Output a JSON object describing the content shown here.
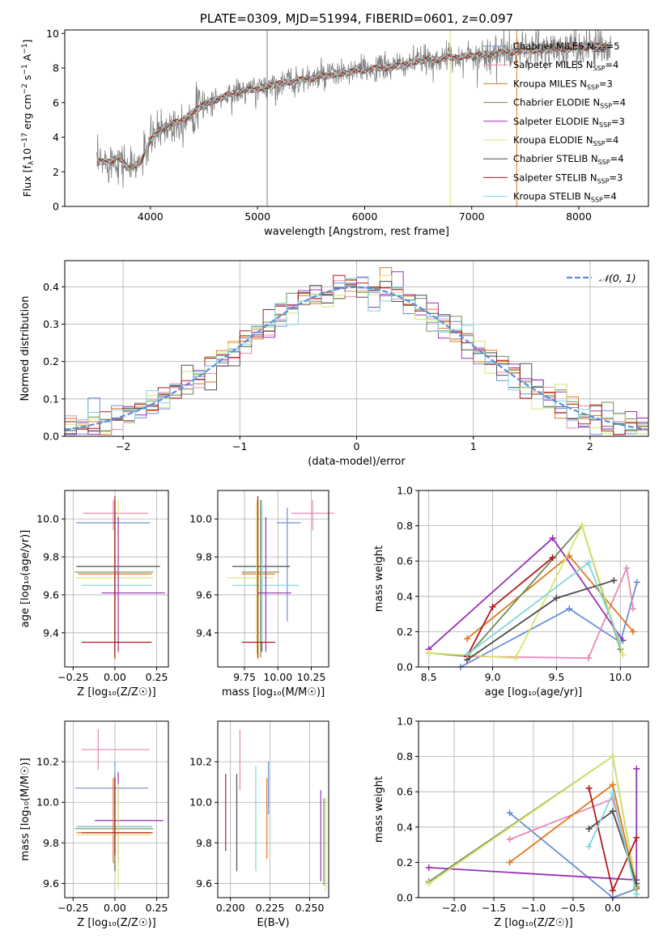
{
  "colors": {
    "chabrier_miles": "#6b8fd6",
    "salpeter_miles": "#e889b8",
    "kroupa_miles": "#e0781c",
    "chabrier_elodie": "#6e8f5e",
    "salpeter_elodie": "#9933b3",
    "kroupa_elodie": "#d9e56a",
    "chabrier_stelib": "#4d4d4d",
    "salpeter_stelib": "#b31a1a",
    "kroupa_stelib": "#7fd6d9",
    "data": "#7f7f7f",
    "normal": "#5b8fd6",
    "grid": "#b0b0b0"
  },
  "chart_data": [
    {
      "id": "spectrum",
      "type": "line",
      "title": "PLATE=0309, MJD=51994, FIBERID=0601, z=0.097",
      "xlabel": "wavelength [Angstrom, rest frame]",
      "ylabel_parts": [
        "Flux [f",
        "λ",
        "10",
        "−17",
        " erg cm",
        "−2",
        " s",
        "−1",
        " A",
        "−1",
        "]"
      ],
      "xlim": [
        3200,
        8650
      ],
      "ylim": [
        0,
        10.2
      ],
      "xticks": [
        4000,
        5000,
        6000,
        7000,
        8000
      ],
      "yticks": [
        0,
        2,
        4,
        6,
        8,
        10
      ],
      "grid": false,
      "legend_position": "top-right",
      "continuum": {
        "x": [
          3500,
          3600,
          3700,
          3800,
          3900,
          4000,
          4100,
          4300,
          4500,
          4800,
          5000,
          5200,
          5500,
          5800,
          6000,
          6300,
          6500,
          6800,
          7000,
          7300,
          7500,
          7800,
          8000,
          8300
        ],
        "y": [
          2.5,
          2.6,
          2.8,
          2.2,
          2.5,
          3.8,
          4.5,
          5.0,
          5.9,
          6.6,
          6.8,
          7.1,
          7.4,
          7.7,
          7.9,
          8.1,
          8.4,
          8.6,
          8.7,
          8.9,
          9.0,
          9.1,
          9.2,
          9.3
        ]
      },
      "series": [
        {
          "name": "Chabrier MILES",
          "nssp": "=5",
          "color_key": "chabrier_miles"
        },
        {
          "name": "Salpeter MILES",
          "nssp": "=4",
          "color_key": "salpeter_miles"
        },
        {
          "name": "Kroupa MILES",
          "nssp": "=3",
          "color_key": "kroupa_miles"
        },
        {
          "name": "Chabrier ELODIE",
          "nssp": "=4",
          "color_key": "chabrier_elodie"
        },
        {
          "name": "Salpeter ELODIE",
          "nssp": "=3",
          "color_key": "salpeter_elodie"
        },
        {
          "name": "Kroupa ELODIE",
          "nssp": "=4",
          "color_key": "kroupa_elodie"
        },
        {
          "name": "Chabrier STELIB",
          "nssp": "=4",
          "color_key": "chabrier_stelib"
        },
        {
          "name": "Salpeter STELIB",
          "nssp": "=3",
          "color_key": "salpeter_stelib"
        },
        {
          "name": "Kroupa STELIB",
          "nssp": "=4",
          "color_key": "kroupa_stelib"
        }
      ],
      "vertical_spikes": [
        {
          "x": 5090,
          "color_key": "data"
        },
        {
          "x": 6800,
          "color_key": "kroupa_elodie"
        },
        {
          "x": 7420,
          "color_key": "kroupa_miles"
        }
      ]
    },
    {
      "id": "residuals",
      "type": "histogram",
      "xlabel": "(data-model)/error",
      "ylabel": "Normed distribution",
      "xlim": [
        -2.5,
        2.5
      ],
      "ylim": [
        0,
        0.47
      ],
      "xticks": [
        -2,
        -1,
        0,
        1,
        2
      ],
      "yticks": [
        0.0,
        0.1,
        0.2,
        0.3,
        0.4
      ],
      "grid": true,
      "legend_position": "top-right",
      "bin_width": 0.1,
      "normal_curve": {
        "name": "𝒩(0, 1)",
        "mean": 0,
        "sigma": 1
      }
    },
    {
      "id": "age_vs_z",
      "type": "errorbar",
      "xlabel": "Z [log₁₀(Z/Z☉)]",
      "ylabel": "age  [log₁₀(age/yr)]",
      "xlim": [
        -0.3,
        0.32
      ],
      "ylim": [
        9.22,
        10.15
      ],
      "xticks": [
        -0.25,
        0.0,
        0.25
      ],
      "yticks": [
        9.4,
        9.6,
        9.8,
        10.0
      ],
      "grid": true,
      "points": [
        {
          "series": "salpeter_miles",
          "x": -0.01,
          "xerr": [
            0.18,
            0.21
          ],
          "y": 10.03,
          "yerr": [
            0.09,
            0.07
          ]
        },
        {
          "series": "chabrier_miles",
          "x": 0.0,
          "xerr": [
            0.23,
            0.21
          ],
          "y": 9.98,
          "yerr": [
            0.6,
            0.08
          ]
        },
        {
          "series": "chabrier_stelib",
          "x": 0.0,
          "xerr": [
            0.23,
            0.27
          ],
          "y": 9.75,
          "yerr": [
            0.45,
            0.3
          ]
        },
        {
          "series": "chabrier_elodie",
          "x": 0.0,
          "xerr": [
            0.24,
            0.23
          ],
          "y": 9.72,
          "yerr": [
            0.45,
            0.38
          ]
        },
        {
          "series": "kroupa_miles",
          "x": 0.0,
          "xerr": [
            0.22,
            0.22
          ],
          "y": 9.71,
          "yerr": [
            0.45,
            0.39
          ]
        },
        {
          "series": "kroupa_elodie",
          "x": 0.02,
          "xerr": [
            0.25,
            0.21
          ],
          "y": 9.69,
          "yerr": [
            0.4,
            0.41
          ]
        },
        {
          "series": "kroupa_stelib",
          "x": 0.0,
          "xerr": [
            0.2,
            0.22
          ],
          "y": 9.65,
          "yerr": [
            0.3,
            0.45
          ]
        },
        {
          "series": "salpeter_elodie",
          "x": 0.02,
          "xerr": [
            0.1,
            0.28
          ],
          "y": 9.61,
          "yerr": [
            0.31,
            0.4
          ]
        },
        {
          "series": "salpeter_stelib",
          "x": 0.0,
          "xerr": [
            0.2,
            0.22
          ],
          "y": 9.35,
          "yerr": [
            0.08,
            0.77
          ]
        }
      ]
    },
    {
      "id": "age_vs_mass",
      "type": "errorbar",
      "xlabel": "mass [log₁₀(M/M☉)]",
      "ylabel": "",
      "xlim": [
        9.55,
        10.38
      ],
      "ylim": [
        9.22,
        10.15
      ],
      "xticks": [
        9.75,
        10.0,
        10.25
      ],
      "yticks": [
        9.4,
        9.6,
        9.8,
        10.0
      ],
      "grid": true,
      "points": [
        {
          "series": "salpeter_miles",
          "x": 10.26,
          "xerr": [
            0.16,
            0.16
          ],
          "y": 10.03,
          "yerr": [
            0.09,
            0.07
          ]
        },
        {
          "series": "chabrier_miles",
          "x": 10.07,
          "xerr": [
            0.08,
            0.1
          ],
          "y": 9.98,
          "yerr": [
            0.52,
            0.08
          ]
        },
        {
          "series": "chabrier_stelib",
          "x": 9.88,
          "xerr": [
            0.22,
            0.21
          ],
          "y": 9.75,
          "yerr": [
            0.45,
            0.3
          ]
        },
        {
          "series": "chabrier_elodie",
          "x": 9.87,
          "xerr": [
            0.14,
            0.14
          ],
          "y": 9.72,
          "yerr": [
            0.45,
            0.38
          ]
        },
        {
          "series": "kroupa_miles",
          "x": 9.85,
          "xerr": [
            0.12,
            0.13
          ],
          "y": 9.71,
          "yerr": [
            0.45,
            0.39
          ]
        },
        {
          "series": "kroupa_elodie",
          "x": 9.84,
          "xerr": [
            0.22,
            0.13
          ],
          "y": 9.69,
          "yerr": [
            0.4,
            0.41
          ]
        },
        {
          "series": "kroupa_stelib",
          "x": 9.88,
          "xerr": [
            0.22,
            0.28
          ],
          "y": 9.65,
          "yerr": [
            0.3,
            0.45
          ]
        },
        {
          "series": "salpeter_elodie",
          "x": 9.91,
          "xerr": [
            0.06,
            0.19
          ],
          "y": 9.61,
          "yerr": [
            0.31,
            0.4
          ]
        },
        {
          "series": "salpeter_stelib",
          "x": 9.85,
          "xerr": [
            0.12,
            0.13
          ],
          "y": 9.35,
          "yerr": [
            0.08,
            0.77
          ]
        }
      ]
    },
    {
      "id": "weight_vs_age",
      "type": "line",
      "xlabel": "age  [log₁₀(age/yr)]",
      "ylabel": "mass weight",
      "xlim": [
        8.42,
        10.22
      ],
      "ylim": [
        0,
        1.0
      ],
      "xticks": [
        8.5,
        9.0,
        9.5,
        10.0
      ],
      "yticks": [
        0.0,
        0.2,
        0.4,
        0.6,
        0.8,
        1.0
      ],
      "grid": true,
      "series": [
        {
          "series": "chabrier_miles",
          "x": [
            8.75,
            9.6,
            10.0,
            10.13
          ],
          "y": [
            0.0,
            0.33,
            0.14,
            0.48
          ]
        },
        {
          "series": "salpeter_miles",
          "x": [
            8.8,
            9.75,
            10.05,
            10.1
          ],
          "y": [
            0.06,
            0.05,
            0.56,
            0.33
          ]
        },
        {
          "series": "kroupa_miles",
          "x": [
            8.8,
            9.6,
            10.1
          ],
          "y": [
            0.16,
            0.63,
            0.2
          ]
        },
        {
          "series": "chabrier_elodie",
          "x": [
            8.5,
            8.8,
            9.7,
            10.0
          ],
          "y": [
            0.08,
            0.06,
            0.8,
            0.1
          ]
        },
        {
          "series": "salpeter_elodie",
          "x": [
            8.5,
            9.47,
            10.02
          ],
          "y": [
            0.1,
            0.73,
            0.15
          ]
        },
        {
          "series": "kroupa_elodie",
          "x": [
            8.5,
            9.18,
            9.7,
            10.02
          ],
          "y": [
            0.08,
            0.05,
            0.8,
            0.07
          ]
        },
        {
          "series": "chabrier_stelib",
          "x": [
            8.8,
            9.5,
            9.95
          ],
          "y": [
            0.04,
            0.39,
            0.49
          ]
        },
        {
          "series": "salpeter_stelib",
          "x": [
            8.8,
            9.0,
            9.47
          ],
          "y": [
            0.06,
            0.34,
            0.62
          ]
        },
        {
          "series": "kroupa_stelib",
          "x": [
            8.8,
            9.75,
            10.0
          ],
          "y": [
            0.07,
            0.59,
            0.14
          ]
        }
      ]
    },
    {
      "id": "mass_vs_z",
      "type": "errorbar",
      "xlabel": "Z [log₁₀(Z/Z☉)]",
      "ylabel": "mass [log₁₀(M/M☉)]",
      "xlim": [
        -0.3,
        0.32
      ],
      "ylim": [
        9.53,
        10.4
      ],
      "xticks": [
        -0.25,
        0.0,
        0.25
      ],
      "yticks": [
        9.6,
        9.8,
        10.0,
        10.2
      ],
      "grid": true,
      "points": [
        {
          "series": "salpeter_miles",
          "x": -0.1,
          "xerr": [
            0.1,
            0.31
          ],
          "y": 10.26,
          "yerr": [
            0.1,
            0.1
          ]
        },
        {
          "series": "chabrier_miles",
          "x": 0.0,
          "xerr": [
            0.24,
            0.2
          ],
          "y": 10.07,
          "yerr": [
            0.23,
            0.13
          ]
        },
        {
          "series": "salpeter_elodie",
          "x": 0.02,
          "xerr": [
            0.14,
            0.27
          ],
          "y": 9.91,
          "yerr": [
            0.21,
            0.24
          ]
        },
        {
          "series": "chabrier_stelib",
          "x": 0.0,
          "xerr": [
            0.23,
            0.22
          ],
          "y": 9.88,
          "yerr": [
            0.22,
            0.25
          ]
        },
        {
          "series": "kroupa_stelib",
          "x": 0.0,
          "xerr": [
            0.23,
            0.22
          ],
          "y": 9.88,
          "yerr": [
            0.15,
            0.25
          ]
        },
        {
          "series": "chabrier_elodie",
          "x": 0.0,
          "xerr": [
            0.24,
            0.23
          ],
          "y": 9.87,
          "yerr": [
            0.16,
            0.27
          ]
        },
        {
          "series": "kroupa_miles",
          "x": -0.01,
          "xerr": [
            0.22,
            0.24
          ],
          "y": 9.85,
          "yerr": [
            0.15,
            0.27
          ]
        },
        {
          "series": "kroupa_elodie",
          "x": 0.02,
          "xerr": [
            0.25,
            0.2
          ],
          "y": 9.84,
          "yerr": [
            0.27,
            0.25
          ]
        },
        {
          "series": "salpeter_stelib",
          "x": 0.0,
          "xerr": [
            0.2,
            0.22
          ],
          "y": 9.85,
          "yerr": [
            0.11,
            0.27
          ]
        }
      ]
    },
    {
      "id": "ebv",
      "type": "errorbar",
      "xlabel": "E(B-V)",
      "ylabel": "",
      "xlim": [
        0.192,
        0.262
      ],
      "ylim": [
        9.53,
        10.4
      ],
      "xticks": [
        0.2,
        0.225,
        0.25
      ],
      "yticks": [
        9.6,
        9.8,
        10.0,
        10.2
      ],
      "grid": true,
      "points": [
        {
          "series": "salpeter_miles",
          "x": 0.206,
          "y": 10.21,
          "yerr": [
            0.15,
            0.15
          ]
        },
        {
          "series": "chabrier_miles",
          "x": 0.224,
          "y": 10.07,
          "yerr": [
            0.13,
            0.13
          ]
        },
        {
          "series": "salpeter_elodie",
          "x": 0.257,
          "y": 9.91,
          "yerr": [
            0.3,
            0.15
          ]
        },
        {
          "series": "chabrier_stelib",
          "x": 0.204,
          "y": 9.9,
          "yerr": [
            0.24,
            0.24
          ]
        },
        {
          "series": "kroupa_stelib",
          "x": 0.216,
          "y": 9.93,
          "yerr": [
            0.27,
            0.25
          ]
        },
        {
          "series": "chabrier_elodie",
          "x": 0.259,
          "y": 9.84,
          "yerr": [
            0.25,
            0.18
          ]
        },
        {
          "series": "kroupa_miles",
          "x": 0.223,
          "y": 9.92,
          "yerr": [
            0.2,
            0.2
          ]
        },
        {
          "series": "kroupa_elodie",
          "x": 0.26,
          "y": 9.78,
          "yerr": [
            0.22,
            0.24
          ]
        },
        {
          "series": "salpeter_stelib",
          "x": 0.197,
          "y": 9.95,
          "yerr": [
            0.19,
            0.19
          ]
        }
      ]
    },
    {
      "id": "weight_vs_z",
      "type": "line",
      "xlabel": "Z [log₁₀(Z/Z☉)]",
      "ylabel": "mass weight",
      "xlim": [
        -2.45,
        0.45
      ],
      "ylim": [
        0,
        1.0
      ],
      "xticks": [
        -2.0,
        -1.5,
        -1.0,
        -0.5,
        0.0
      ],
      "yticks": [
        0.0,
        0.2,
        0.4,
        0.6,
        0.8,
        1.0
      ],
      "grid": true,
      "series": [
        {
          "series": "chabrier_miles",
          "x": [
            -1.3,
            0.0,
            0.3
          ],
          "y": [
            0.48,
            0.0,
            0.05
          ]
        },
        {
          "series": "salpeter_miles",
          "x": [
            -1.3,
            0.0,
            0.3
          ],
          "y": [
            0.33,
            0.56,
            0.05
          ]
        },
        {
          "series": "kroupa_miles",
          "x": [
            -1.3,
            0.0,
            0.3
          ],
          "y": [
            0.2,
            0.64,
            0.05
          ]
        },
        {
          "series": "chabrier_elodie",
          "x": [
            -2.32,
            0.0,
            0.3
          ],
          "y": [
            0.09,
            0.8,
            0.06
          ]
        },
        {
          "series": "salpeter_elodie",
          "x": [
            -2.32,
            0.3,
            0.3
          ],
          "y": [
            0.17,
            0.1,
            0.73
          ]
        },
        {
          "series": "kroupa_elodie",
          "x": [
            -2.32,
            0.0,
            0.3
          ],
          "y": [
            0.08,
            0.8,
            0.07
          ]
        },
        {
          "series": "chabrier_stelib",
          "x": [
            -0.3,
            0.0,
            0.3
          ],
          "y": [
            0.39,
            0.49,
            0.08
          ]
        },
        {
          "series": "salpeter_stelib",
          "x": [
            -0.3,
            0.0,
            0.3
          ],
          "y": [
            0.62,
            0.04,
            0.34
          ]
        },
        {
          "series": "kroupa_stelib",
          "x": [
            -0.3,
            0.0,
            0.3
          ],
          "y": [
            0.29,
            0.59,
            0.02
          ]
        }
      ]
    }
  ]
}
